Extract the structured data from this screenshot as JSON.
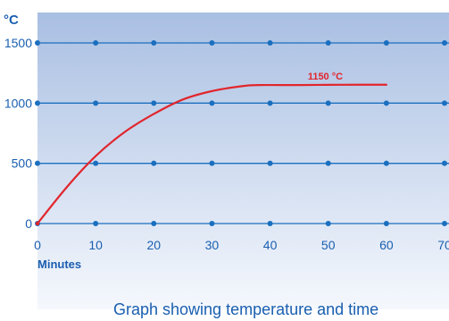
{
  "chart_data": {
    "type": "line",
    "title": "Graph showing temperature and time",
    "xlabel": "Minutes",
    "ylabel": "°C",
    "xlim": [
      0,
      70
    ],
    "ylim": [
      0,
      1500
    ],
    "x_ticks": [
      0,
      10,
      20,
      30,
      40,
      50,
      60,
      70
    ],
    "y_ticks": [
      0,
      500,
      1000,
      1500
    ],
    "grid": true,
    "series": [
      {
        "color": "#e1262d",
        "x": [
          0,
          5,
          10,
          15,
          20,
          25,
          30,
          35,
          38,
          45,
          50,
          55,
          60
        ],
        "y": [
          0,
          300,
          560,
          760,
          910,
          1030,
          1100,
          1140,
          1150,
          1150,
          1152,
          1153,
          1153
        ]
      }
    ],
    "annotations": [
      {
        "text": "1150 °C",
        "x": 49.5,
        "y": 1195
      }
    ],
    "colors": {
      "grid": "#1a6fbf",
      "axis_text": "#1a5fb0",
      "line": "#e1262d",
      "bg_top": "#a9bfe2",
      "bg_bottom": "#f5f8fd"
    }
  }
}
